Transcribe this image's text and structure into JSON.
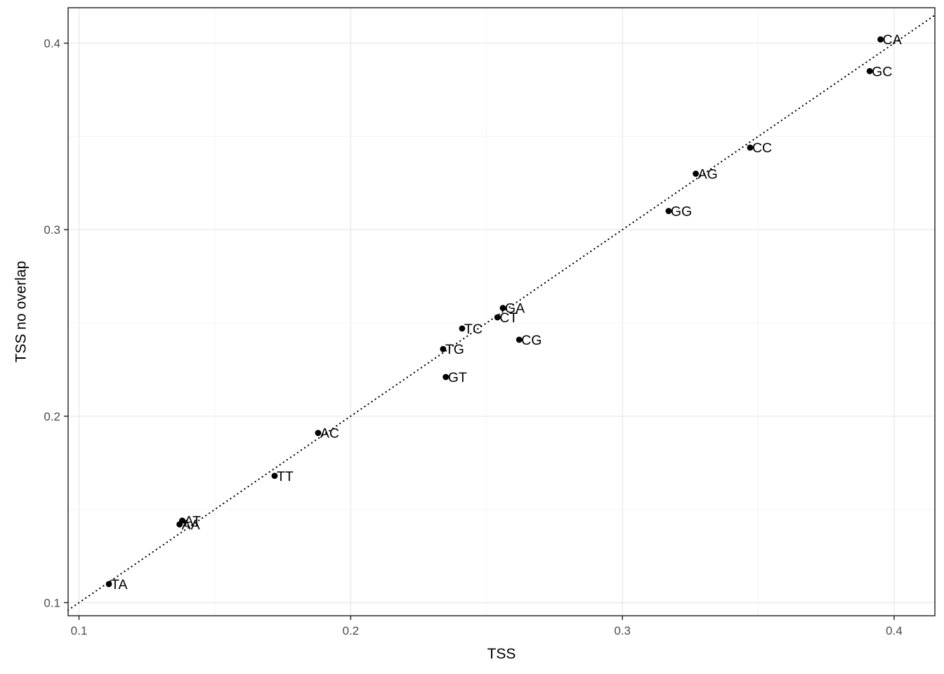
{
  "figure": {
    "background": "#ffffff"
  },
  "chart_data": {
    "type": "scatter",
    "title": "",
    "xlabel": "TSS",
    "ylabel": "TSS no overlap",
    "xlim": [
      0.096,
      0.415
    ],
    "ylim": [
      0.093,
      0.419
    ],
    "xticks": [
      0.1,
      0.2,
      0.3,
      0.4
    ],
    "yticks": [
      0.1,
      0.2,
      0.3,
      0.4
    ],
    "xtick_labels": [
      "0.1",
      "0.2",
      "0.3",
      "0.4"
    ],
    "ytick_labels": [
      "0.1",
      "0.2",
      "0.3",
      "0.4"
    ],
    "grid": "major+minor",
    "legend": "none",
    "identity_line": {
      "style": "dotted",
      "equation": "y = x"
    },
    "points": [
      {
        "label": "TA",
        "x": 0.111,
        "y": 0.11
      },
      {
        "label": "AA",
        "x": 0.137,
        "y": 0.142
      },
      {
        "label": "AT",
        "x": 0.138,
        "y": 0.144
      },
      {
        "label": "TT",
        "x": 0.172,
        "y": 0.168
      },
      {
        "label": "AC",
        "x": 0.188,
        "y": 0.191
      },
      {
        "label": "GT",
        "x": 0.235,
        "y": 0.221
      },
      {
        "label": "TG",
        "x": 0.234,
        "y": 0.236
      },
      {
        "label": "TC",
        "x": 0.241,
        "y": 0.247
      },
      {
        "label": "CG",
        "x": 0.262,
        "y": 0.241
      },
      {
        "label": "CT",
        "x": 0.254,
        "y": 0.253
      },
      {
        "label": "GA",
        "x": 0.256,
        "y": 0.258
      },
      {
        "label": "GG",
        "x": 0.317,
        "y": 0.31
      },
      {
        "label": "AG",
        "x": 0.327,
        "y": 0.33
      },
      {
        "label": "CC",
        "x": 0.347,
        "y": 0.344
      },
      {
        "label": "GC",
        "x": 0.391,
        "y": 0.385
      },
      {
        "label": "CA",
        "x": 0.395,
        "y": 0.402
      }
    ],
    "colors": {
      "point": "#000000",
      "point_label": "#000000",
      "identity_line": "#000000",
      "grid_major": "#e8e8e8",
      "grid_minor": "#f4f4f4",
      "panel_border": "#2b2b2b",
      "tick_label": "#4d4d4d",
      "axis_title": "#000000"
    }
  }
}
